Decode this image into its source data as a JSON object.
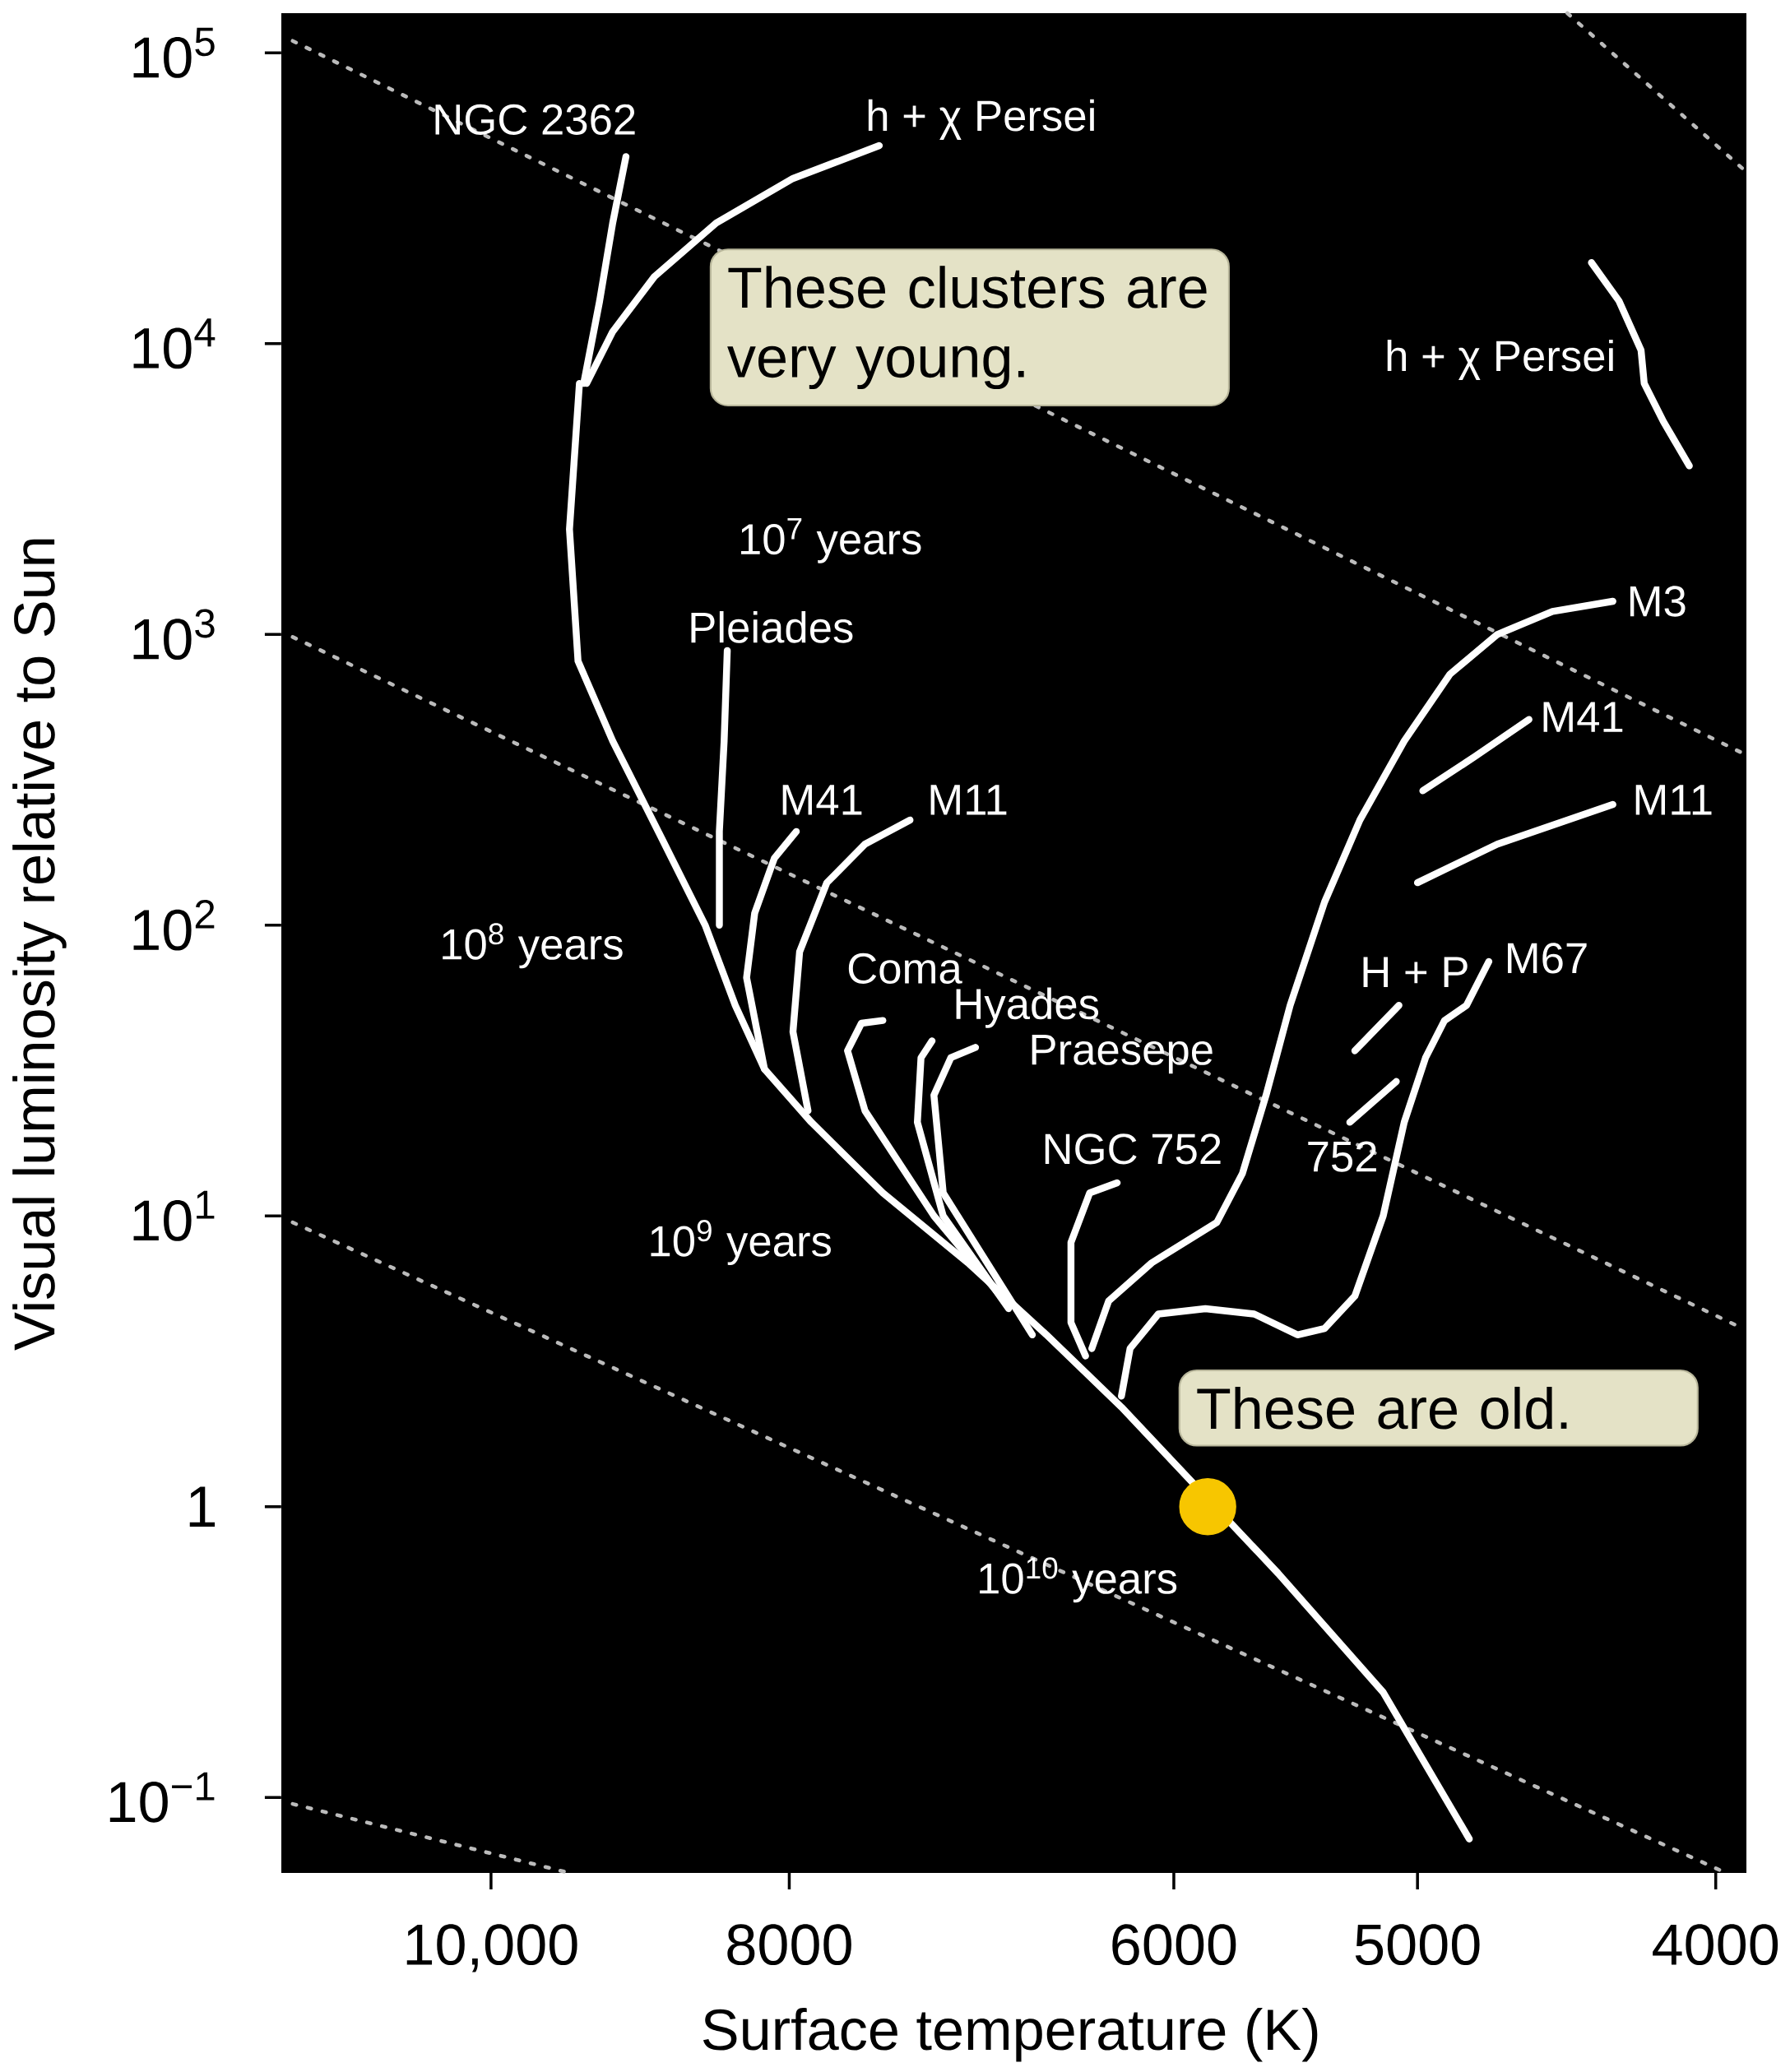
{
  "chart_data": {
    "type": "line",
    "xlabel": "Surface temperature (K)",
    "ylabel": "Visual luminosity relative to Sun",
    "xlim": [
      11700,
      3910
    ],
    "ylim": [
      0.055,
      137000
    ],
    "log": "xy",
    "xticks": [
      {
        "value": 10000,
        "label": "10,000"
      },
      8000,
      6000,
      5000,
      4000
    ],
    "yticks": [
      {
        "value": 100000,
        "label": "10$^{5}$"
      },
      {
        "value": 10000,
        "label": "10$^{4}$"
      },
      {
        "value": 1000,
        "label": "10$^{3}$"
      },
      {
        "value": 100,
        "label": "10$^{2}$"
      },
      {
        "value": 10,
        "label": "10$^{1}$"
      },
      1,
      {
        "value": 0.1,
        "label": "10$^{−1}$"
      }
    ],
    "series": [
      {
        "color": "#bbbbbb",
        "line_style": "dotted",
        "x": [
          11600,
          3920
        ],
        "values": [
          110000,
          390
        ]
      },
      {
        "color": "#bbbbbb",
        "line_style": "dotted",
        "x": [
          11600,
          3920
        ],
        "values": [
          980,
          4.1
        ]
      },
      {
        "color": "#bbbbbb",
        "line_style": "dotted",
        "x": [
          11600,
          3970
        ],
        "values": [
          9.5,
          0.055
        ]
      },
      {
        "color": "#bbbbbb",
        "line_style": "dotted",
        "x": [
          11600,
          9430
        ],
        "values": [
          0.095,
          0.055
        ]
      },
      {
        "color": "#bbbbbb",
        "line_style": "dotted",
        "x": [
          4470,
          3910
        ],
        "values": [
          137000,
          39000
        ]
      },
      {
        "color": "#ffffff",
        "x": [
          9360,
          9430,
          9370,
          9130,
          8820,
          8520,
          8330,
          8150,
          7870,
          7460,
          7000,
          6600,
          6240,
          5860,
          5550,
          5130,
          4810
        ],
        "values": [
          7300,
          2300,
          810,
          430,
          208,
          100,
          53,
          32,
          21,
          12,
          6.9,
          3.9,
          2.2,
          null,
          0.59,
          0.23,
          0.072
        ]
      },
      {
        "color": "#ffffff",
        "x": [
          9040,
          9130,
          9220,
          9330
        ],
        "values": [
          44000,
          26000,
          14000,
          7300
        ]
      },
      {
        "color": "#ffffff",
        "x": [
          7480,
          7980,
          8450,
          8850,
          9130,
          9310
        ],
        "values": [
          48000,
          37000,
          26000,
          17000,
          11000,
          7300
        ]
      },
      {
        "color": "#ffffff",
        "x": [
          8380,
          8400,
          8430,
          8430
        ],
        "values": [
          880,
          430,
          210,
          100
        ]
      },
      {
        "color": "#ffffff",
        "x": [
          7960,
          8090,
          8210,
          8260,
          8150
        ],
        "values": [
          210,
          170,
          110,
          66,
          32
        ]
      },
      {
        "color": "#ffffff",
        "x": [
          7310,
          7560,
          7780,
          7940,
          7980,
          7890
        ],
        "values": [
          230,
          190,
          140,
          81,
          43,
          23
        ]
      },
      {
        "color": "#ffffff",
        "x": [
          7460,
          7580,
          7660,
          7560,
          7180,
          6830
        ],
        "values": [
          47,
          46,
          37,
          23,
          10,
          5.3
        ]
      },
      {
        "color": "#ffffff",
        "x": [
          7190,
          7250,
          7270,
          7130,
          6790
        ],
        "values": [
          40,
          35,
          21,
          10,
          4.8
        ]
      },
      {
        "color": "#ffffff",
        "x": [
          6960,
          7090,
          7180,
          7130,
          6670
        ],
        "values": [
          38,
          35,
          26,
          12,
          3.9
        ]
      },
      {
        "color": "#ffffff",
        "x": [
          6260,
          6390,
          6480,
          6480,
          6410
        ],
        "values": [
          13,
          12,
          8.1,
          4.3,
          3.3
        ]
      },
      {
        "color": "#ffffff",
        "x": [
          4320,
          4520,
          4710,
          4880,
          5050,
          5220,
          5360,
          5500,
          5600,
          5700,
          5810,
          6100,
          6300,
          6380
        ],
        "values": [
          1300,
          1200,
          1000,
          730,
          430,
          230,
          120,
          53,
          26,
          14,
          9.5,
          6.9,
          5.1,
          3.5
        ]
      },
      {
        "color": "#ffffff",
        "x": [
          4980,
          4790,
          4600
        ],
        "values": [
          290,
          380,
          510
        ]
      },
      {
        "color": "#ffffff",
        "x": [
          5000,
          4710,
          4320
        ],
        "values": [
          140,
          190,
          260
        ]
      },
      {
        "color": "#ffffff",
        "x": [
          6240,
          6200,
          6070,
          5860,
          5650,
          5470,
          5360,
          5240,
          5130,
          5050,
          4970,
          4900,
          4820,
          4740
        ],
        "values": [
          2.4,
          3.5,
          4.6,
          4.8,
          4.6,
          3.9,
          4.1,
          5.3,
          10,
          21,
          35,
          47,
          53,
          75
        ]
      },
      {
        "color": "#ffffff",
        "x": [
          5240,
          5070
        ],
        "values": [
          37,
          53
        ]
      },
      {
        "color": "#ffffff",
        "x": [
          5260,
          5080
        ],
        "values": [
          21,
          29
        ]
      },
      {
        "color": "#ffffff",
        "x": [
          4390,
          4300,
          4230,
          4220,
          4160,
          4080
        ],
        "values": [
          19000,
          14000,
          9500,
          7300,
          5400,
          3800
        ]
      },
      {
        "type": "scatter",
        "marker": "circle",
        "color": "#f7c600",
        "x": [
          5850
        ],
        "values": [
          1.0
        ]
      }
    ],
    "annotations": [
      "NGC 2362",
      "h + χ Persei",
      "h + χ Persei",
      "Pleiades",
      "M41",
      "M11",
      "Coma",
      "Hyades",
      "Praesepe",
      "NGC 752",
      "M3",
      "M41",
      "M11",
      "H + P",
      "M67",
      "752",
      "10$^{7}$ years",
      "10$^{8}$ years",
      "10$^{9}$ years",
      "10$^{10}$ years",
      "These clusters are very young.",
      "These are old."
    ]
  }
}
